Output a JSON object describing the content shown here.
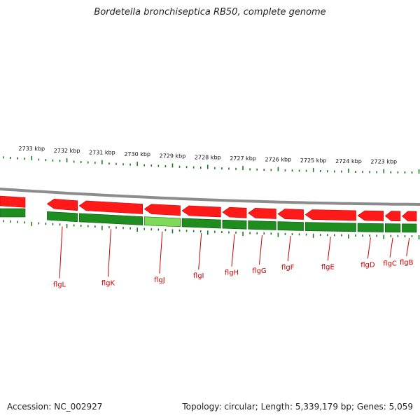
{
  "title": "Bordetella bronchiseptica RB50, complete genome",
  "footer": {
    "accession": "Accession: NC_002927",
    "topology": "Topology: circular; Length: 5,339,179 bp; Genes: 5,059"
  },
  "kbp_labels": [
    {
      "text": "2733 kbp",
      "kbp": 2733
    },
    {
      "text": "2732 kbp",
      "kbp": 2732
    },
    {
      "text": "2731 kbp",
      "kbp": 2731
    },
    {
      "text": "2730 kbp",
      "kbp": 2730
    },
    {
      "text": "2729 kbp",
      "kbp": 2729
    },
    {
      "text": "2728 kbp",
      "kbp": 2728
    },
    {
      "text": "2727 kbp",
      "kbp": 2727
    },
    {
      "text": "2726 kbp",
      "kbp": 2726
    },
    {
      "text": "2725 kbp",
      "kbp": 2725
    },
    {
      "text": "2724 kbp",
      "kbp": 2724
    },
    {
      "text": "2723 kbp",
      "kbp": 2723
    }
  ],
  "genes": [
    {
      "name": "flgL",
      "start_kbp": 2732.56,
      "end_kbp": 2731.7
    },
    {
      "name": "flgK",
      "start_kbp": 2731.65,
      "end_kbp": 2729.85
    },
    {
      "name": "flgJ",
      "start_kbp": 2729.8,
      "end_kbp": 2728.78
    },
    {
      "name": "flgI",
      "start_kbp": 2728.73,
      "end_kbp": 2727.63
    },
    {
      "name": "flgH",
      "start_kbp": 2727.58,
      "end_kbp": 2726.9
    },
    {
      "name": "flgG",
      "start_kbp": 2726.85,
      "end_kbp": 2726.06
    },
    {
      "name": "flgF",
      "start_kbp": 2726.01,
      "end_kbp": 2725.28
    },
    {
      "name": "flgE",
      "start_kbp": 2725.23,
      "end_kbp": 2723.79
    },
    {
      "name": "flgD",
      "start_kbp": 2723.74,
      "end_kbp": 2723.01
    },
    {
      "name": "flgC",
      "start_kbp": 2722.96,
      "end_kbp": 2722.53
    },
    {
      "name": "flgB",
      "start_kbp": 2722.48,
      "end_kbp": 2722.07
    }
  ],
  "colors": {
    "gene_red": "#ff1a1a",
    "gene_red_dark": "#c80000",
    "gene_green": "#1e8c1e",
    "gene_green_dark": "#0f5a0f",
    "highlight_green": "#7ed957",
    "backbone": "#8c8c8c",
    "tick": "#1a7a1a",
    "label_red": "#cc0000"
  }
}
